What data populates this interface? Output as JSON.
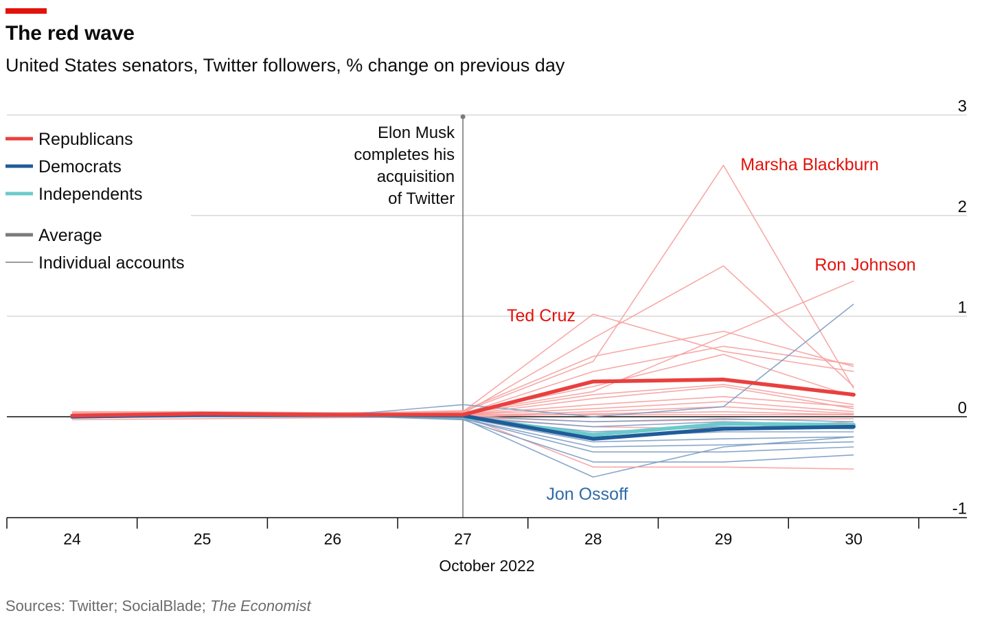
{
  "header": {
    "title": "The red wave",
    "subtitle": "United States senators, Twitter followers, % change on previous day"
  },
  "source": {
    "prefix": "Sources: Twitter; SocialBlade; ",
    "publication": "The Economist"
  },
  "legend": {
    "items": [
      {
        "label": "Republicans",
        "color": "#e8403e",
        "style": "thick"
      },
      {
        "label": "Democrats",
        "color": "#1f5c99",
        "style": "thick"
      },
      {
        "label": "Independents",
        "color": "#6bcacb",
        "style": "thick"
      },
      {
        "label": "Average",
        "color": "#7a7a7a",
        "style": "thick"
      },
      {
        "label": "Individual accounts",
        "color": "#7a7a7a",
        "style": "thin"
      }
    ]
  },
  "annotation": {
    "event_day": 27,
    "lines": [
      "Elon Musk",
      "completes his",
      "acquisition",
      "of Twitter"
    ]
  },
  "chart_data": {
    "type": "line",
    "x": [
      24,
      25,
      26,
      27,
      28,
      29,
      30
    ],
    "xlabel": "October 2022",
    "ylabel": "",
    "ylim": [
      -1,
      3
    ],
    "yticks": [
      -1,
      0,
      1,
      2,
      3
    ],
    "grid": true,
    "legend_position": "top-left",
    "colors": {
      "republican_avg": "#e8403e",
      "republican_individual": "#f6a09d",
      "democrat_avg": "#1f5c99",
      "democrat_individual": "#7b9cc4",
      "independent_avg": "#6bcacb",
      "zero_line": "#0d0d0d",
      "grid": "#d0d0d0",
      "label_red": "#e3120b",
      "label_blue": "#2e6aa8"
    },
    "series": [
      {
        "name": "Republicans",
        "party": "republican",
        "kind": "average",
        "values": [
          0.01,
          0.03,
          0.02,
          0.02,
          0.35,
          0.37,
          0.22
        ]
      },
      {
        "name": "Democrats",
        "party": "democrat",
        "kind": "average",
        "values": [
          0.0,
          0.02,
          0.02,
          0.01,
          -0.22,
          -0.12,
          -0.1
        ]
      },
      {
        "name": "Independents",
        "party": "independent",
        "kind": "average",
        "values": [
          0.0,
          0.02,
          0.02,
          0.0,
          -0.18,
          -0.07,
          -0.08
        ]
      },
      {
        "name": "Marsha Blackburn",
        "party": "republican",
        "kind": "individual",
        "values": [
          0.02,
          0.03,
          0.02,
          0.05,
          0.55,
          2.5,
          0.28
        ]
      },
      {
        "name": "Ron Johnson",
        "party": "republican",
        "kind": "individual",
        "values": [
          0.03,
          0.04,
          0.03,
          0.04,
          0.25,
          0.8,
          1.35
        ]
      },
      {
        "name": "Ted Cruz",
        "party": "republican",
        "kind": "individual",
        "values": [
          0.05,
          0.05,
          0.04,
          0.05,
          1.02,
          0.65,
          0.45
        ]
      },
      {
        "name": "Jon Ossoff",
        "party": "democrat",
        "kind": "individual",
        "values": [
          -0.01,
          0.0,
          0.01,
          -0.02,
          -0.6,
          -0.3,
          -0.2
        ]
      },
      {
        "name": "",
        "party": "republican",
        "kind": "individual",
        "values": [
          0.0,
          0.02,
          0.02,
          0.03,
          0.78,
          1.5,
          0.3
        ]
      },
      {
        "name": "",
        "party": "republican",
        "kind": "individual",
        "values": [
          0.04,
          0.05,
          0.03,
          0.06,
          0.6,
          0.85,
          0.5
        ]
      },
      {
        "name": "",
        "party": "republican",
        "kind": "individual",
        "values": [
          0.02,
          0.02,
          0.02,
          0.03,
          0.45,
          0.7,
          0.52
        ]
      },
      {
        "name": "",
        "party": "republican",
        "kind": "individual",
        "values": [
          0.01,
          0.03,
          0.02,
          0.04,
          0.3,
          0.62,
          0.2
        ]
      },
      {
        "name": "",
        "party": "republican",
        "kind": "individual",
        "values": [
          0.03,
          0.04,
          0.03,
          0.03,
          0.22,
          0.32,
          0.12
        ]
      },
      {
        "name": "",
        "party": "republican",
        "kind": "individual",
        "values": [
          0.02,
          0.03,
          0.02,
          0.02,
          0.18,
          0.3,
          0.08
        ]
      },
      {
        "name": "",
        "party": "republican",
        "kind": "individual",
        "values": [
          0.02,
          0.03,
          0.02,
          0.02,
          0.12,
          0.2,
          0.1
        ]
      },
      {
        "name": "",
        "party": "republican",
        "kind": "individual",
        "values": [
          0.01,
          0.02,
          0.02,
          0.02,
          0.08,
          0.15,
          0.05
        ]
      },
      {
        "name": "",
        "party": "republican",
        "kind": "individual",
        "values": [
          0.02,
          0.02,
          0.01,
          0.01,
          0.05,
          0.1,
          0.03
        ]
      },
      {
        "name": "",
        "party": "republican",
        "kind": "individual",
        "values": [
          -0.03,
          -0.02,
          -0.01,
          0.0,
          0.03,
          0.05,
          0.02
        ]
      },
      {
        "name": "",
        "party": "republican",
        "kind": "individual",
        "values": [
          0.01,
          0.02,
          0.01,
          0.02,
          0.02,
          0.02,
          0.02
        ]
      },
      {
        "name": "",
        "party": "republican",
        "kind": "individual",
        "values": [
          0.02,
          0.03,
          0.02,
          0.01,
          -0.05,
          -0.03,
          -0.02
        ]
      },
      {
        "name": "",
        "party": "republican",
        "kind": "individual",
        "values": [
          0.01,
          0.01,
          0.01,
          0.0,
          -0.1,
          -0.12,
          -0.05
        ]
      },
      {
        "name": "",
        "party": "republican",
        "kind": "individual",
        "values": [
          0.0,
          0.02,
          0.02,
          0.01,
          -0.5,
          -0.5,
          -0.52
        ]
      },
      {
        "name": "",
        "party": "democrat",
        "kind": "individual",
        "values": [
          0.0,
          0.01,
          0.01,
          0.12,
          0.0,
          0.1,
          1.12
        ]
      },
      {
        "name": "",
        "party": "democrat",
        "kind": "individual",
        "values": [
          0.0,
          0.01,
          0.01,
          -0.03,
          -0.45,
          -0.45,
          -0.38
        ]
      },
      {
        "name": "",
        "party": "democrat",
        "kind": "individual",
        "values": [
          0.0,
          0.01,
          0.01,
          -0.02,
          -0.35,
          -0.35,
          -0.3
        ]
      },
      {
        "name": "",
        "party": "democrat",
        "kind": "individual",
        "values": [
          0.0,
          0.01,
          0.01,
          -0.02,
          -0.3,
          -0.28,
          -0.25
        ]
      },
      {
        "name": "",
        "party": "democrat",
        "kind": "individual",
        "values": [
          0.0,
          0.01,
          0.01,
          -0.01,
          -0.25,
          -0.22,
          -0.2
        ]
      },
      {
        "name": "",
        "party": "democrat",
        "kind": "individual",
        "values": [
          0.0,
          0.01,
          0.01,
          -0.01,
          -0.2,
          -0.15,
          -0.15
        ]
      },
      {
        "name": "",
        "party": "democrat",
        "kind": "individual",
        "values": [
          0.0,
          0.01,
          0.01,
          -0.01,
          -0.15,
          -0.1,
          -0.12
        ]
      },
      {
        "name": "",
        "party": "democrat",
        "kind": "individual",
        "values": [
          0.0,
          0.01,
          0.0,
          -0.01,
          -0.1,
          -0.05,
          -0.08
        ]
      },
      {
        "name": "",
        "party": "democrat",
        "kind": "individual",
        "values": [
          0.0,
          0.0,
          0.0,
          0.0,
          -0.05,
          -0.02,
          -0.05
        ]
      }
    ],
    "labels": [
      {
        "text": "Marsha Blackburn",
        "party": "republican"
      },
      {
        "text": "Ron Johnson",
        "party": "republican"
      },
      {
        "text": "Ted Cruz",
        "party": "republican"
      },
      {
        "text": "Jon Ossoff",
        "party": "democrat"
      }
    ]
  }
}
